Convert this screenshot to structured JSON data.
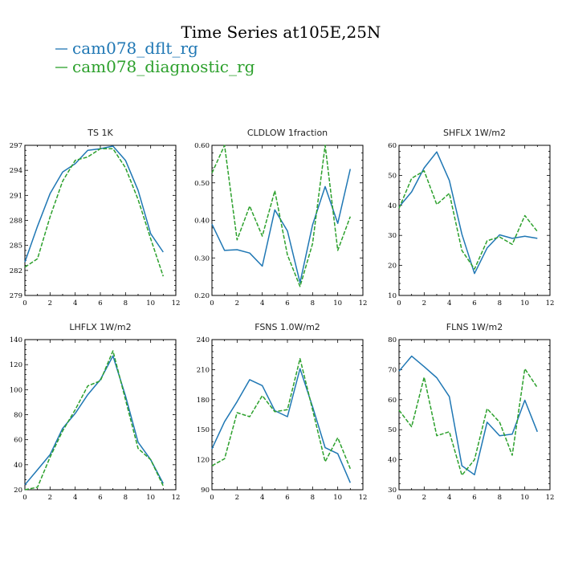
{
  "header": {
    "title": "Time Series at105E,25N"
  },
  "legend": [
    {
      "label": "cam078_dflt_rg",
      "color": "#1f77b4",
      "dash": "solid"
    },
    {
      "label": "cam078_diagnostic_rg",
      "color": "#2ca02c",
      "dash": "dashed"
    }
  ],
  "chart_data": [
    {
      "type": "line",
      "title": "TS   1K",
      "xlim": [
        0,
        12
      ],
      "xticks": [
        0,
        2,
        4,
        6,
        8,
        10,
        12
      ],
      "ylim": [
        279,
        297
      ],
      "yticks": [
        279,
        282,
        285,
        288,
        291,
        294,
        297
      ],
      "ytick_labels": [
        "279",
        "282",
        "285",
        "288",
        "291",
        "294",
        "297"
      ],
      "x": [
        0,
        1,
        2,
        3,
        4,
        5,
        6,
        7,
        8,
        9,
        10,
        11
      ],
      "series": [
        {
          "name": "cam078_dflt_rg",
          "values": [
            283.0,
            287.3,
            291.2,
            293.8,
            294.8,
            296.4,
            296.6,
            296.9,
            295.2,
            291.6,
            286.4,
            284.2
          ]
        },
        {
          "name": "cam078_diagnostic_rg",
          "values": [
            282.4,
            283.4,
            288.4,
            292.7,
            295.2,
            295.6,
            296.6,
            296.6,
            294.3,
            290.5,
            285.8,
            281.3
          ]
        }
      ]
    },
    {
      "type": "line",
      "title": "CLDLOW   1fraction",
      "xlim": [
        0,
        12
      ],
      "xticks": [
        0,
        2,
        4,
        6,
        8,
        10,
        12
      ],
      "ylim": [
        0.2,
        0.6
      ],
      "yticks": [
        0.2,
        0.3,
        0.4,
        0.5,
        0.6
      ],
      "ytick_labels": [
        "0.20",
        "0.30",
        "0.40",
        "0.50",
        "0.60"
      ],
      "x": [
        0,
        1,
        2,
        3,
        4,
        5,
        6,
        7,
        8,
        9,
        10,
        11
      ],
      "series": [
        {
          "name": "cam078_dflt_rg",
          "values": [
            0.39,
            0.32,
            0.322,
            0.313,
            0.278,
            0.428,
            0.372,
            0.234,
            0.388,
            0.49,
            0.392,
            0.537
          ]
        },
        {
          "name": "cam078_diagnostic_rg",
          "values": [
            0.526,
            0.6,
            0.348,
            0.438,
            0.358,
            0.479,
            0.308,
            0.224,
            0.338,
            0.6,
            0.32,
            0.41
          ]
        }
      ]
    },
    {
      "type": "line",
      "title": "SHFLX   1W/m2",
      "xlim": [
        0,
        12
      ],
      "xticks": [
        0,
        2,
        4,
        6,
        8,
        10,
        12
      ],
      "ylim": [
        10,
        60
      ],
      "yticks": [
        10,
        20,
        30,
        40,
        50,
        60
      ],
      "ytick_labels": [
        "10",
        "20",
        "30",
        "40",
        "50",
        "60"
      ],
      "x": [
        0,
        1,
        2,
        3,
        4,
        5,
        6,
        7,
        8,
        9,
        10,
        11
      ],
      "series": [
        {
          "name": "cam078_dflt_rg",
          "values": [
            39.5,
            44.5,
            52.5,
            57.8,
            48.3,
            30.4,
            17.3,
            25.8,
            30.2,
            29.0,
            29.7,
            29.0
          ]
        },
        {
          "name": "cam078_diagnostic_rg",
          "values": [
            39.0,
            49.0,
            51.5,
            40.3,
            44.0,
            25.0,
            18.8,
            28.2,
            29.5,
            27.0,
            36.6,
            31.3
          ]
        }
      ]
    },
    {
      "type": "line",
      "title": "LHFLX   1W/m2",
      "xlim": [
        0,
        12
      ],
      "xticks": [
        0,
        2,
        4,
        6,
        8,
        10,
        12
      ],
      "ylim": [
        20,
        140
      ],
      "yticks": [
        20,
        40,
        60,
        80,
        100,
        120,
        140
      ],
      "ytick_labels": [
        "20",
        "40",
        "60",
        "80",
        "100",
        "120",
        "140"
      ],
      "x": [
        0,
        1,
        2,
        3,
        4,
        5,
        6,
        7,
        8,
        9,
        10,
        11
      ],
      "series": [
        {
          "name": "cam078_dflt_rg",
          "values": [
            24,
            36,
            48,
            69,
            81,
            96,
            108,
            127,
            95,
            58,
            44,
            25
          ]
        },
        {
          "name": "cam078_diagnostic_rg",
          "values": [
            20,
            22,
            46,
            67,
            84,
            103,
            107,
            131,
            92,
            53,
            44,
            23
          ]
        }
      ]
    },
    {
      "type": "line",
      "title": "FSNS   1.0W/m2",
      "xlim": [
        0,
        12
      ],
      "xticks": [
        0,
        2,
        4,
        6,
        8,
        10,
        12
      ],
      "ylim": [
        90,
        240
      ],
      "yticks": [
        90,
        120,
        150,
        180,
        210,
        240
      ],
      "ytick_labels": [
        "90",
        "120",
        "150",
        "180",
        "210",
        "240"
      ],
      "x": [
        0,
        1,
        2,
        3,
        4,
        5,
        6,
        7,
        8,
        9,
        10,
        11
      ],
      "series": [
        {
          "name": "cam078_dflt_rg",
          "values": [
            131,
            158,
            178,
            200,
            194,
            169,
            163,
            211,
            173,
            132,
            126,
            97
          ]
        },
        {
          "name": "cam078_diagnostic_rg",
          "values": [
            114,
            121,
            167,
            163,
            184,
            168,
            170,
            221,
            170,
            118,
            142,
            111
          ]
        }
      ]
    },
    {
      "type": "line",
      "title": "FLNS   1W/m2",
      "xlim": [
        0,
        12
      ],
      "xticks": [
        0,
        2,
        4,
        6,
        8,
        10,
        12
      ],
      "ylim": [
        30,
        80
      ],
      "yticks": [
        30,
        40,
        50,
        60,
        70,
        80
      ],
      "ytick_labels": [
        "30",
        "40",
        "50",
        "60",
        "70",
        "80"
      ],
      "x": [
        0,
        1,
        2,
        3,
        4,
        5,
        6,
        7,
        8,
        9,
        10,
        11
      ],
      "series": [
        {
          "name": "cam078_dflt_rg",
          "values": [
            69.5,
            74.5,
            71.0,
            67.3,
            61.0,
            38.0,
            35.0,
            52.5,
            48.0,
            48.5,
            59.8,
            49.3
          ]
        },
        {
          "name": "cam078_diagnostic_rg",
          "values": [
            56.5,
            51.0,
            67.5,
            48.0,
            49.3,
            34.8,
            40.0,
            57.0,
            52.5,
            41.5,
            70.3,
            64.0
          ]
        }
      ]
    }
  ]
}
